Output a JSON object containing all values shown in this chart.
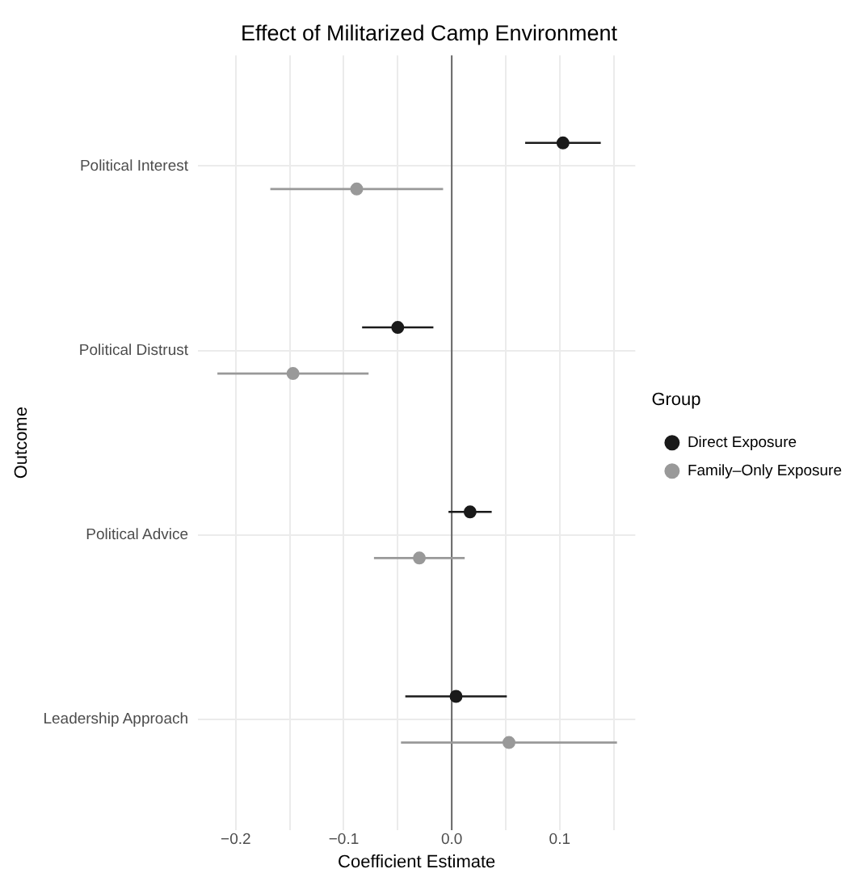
{
  "chart_data": {
    "type": "scatter",
    "title": "Effect of Militarized Camp Environment",
    "xlabel": "Coefficient Estimate",
    "ylabel": "Outcome",
    "legend_title": "Group",
    "orientation": "horizontal",
    "categories": [
      "Political Interest",
      "Political Distrust",
      "Political Advice",
      "Leadership Approach"
    ],
    "series": [
      {
        "name": "Direct Exposure",
        "color": "#1a1a1a",
        "values": [
          0.103,
          -0.05,
          0.017,
          0.004
        ],
        "errors": [
          0.035,
          0.033,
          0.02,
          0.047
        ]
      },
      {
        "name": "Family–Only Exposure",
        "color": "#999999",
        "values": [
          -0.088,
          -0.147,
          -0.03,
          0.053
        ],
        "errors": [
          0.08,
          0.07,
          0.042,
          0.1
        ]
      }
    ],
    "xlim": [
      -0.235,
      0.17
    ],
    "xticks": [
      {
        "value": -0.2,
        "label": "−0.2"
      },
      {
        "value": -0.15,
        "label": null
      },
      {
        "value": -0.1,
        "label": "−0.1"
      },
      {
        "value": -0.05,
        "label": null
      },
      {
        "value": 0,
        "label": "0.0"
      },
      {
        "value": 0.05,
        "label": null
      },
      0.1,
      {
        "value": 0.15,
        "label": null
      }
    ],
    "ref_lines": [
      {
        "axis": "x",
        "value": 0,
        "color": "#666666"
      }
    ],
    "grid": true,
    "legend": "right",
    "marker": "circle"
  }
}
